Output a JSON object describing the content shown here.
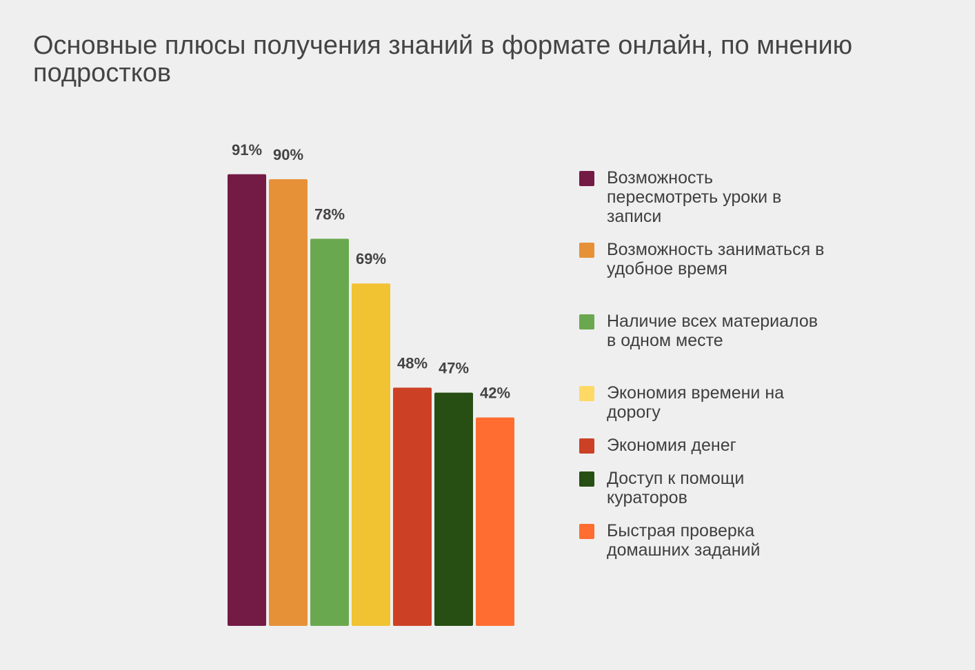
{
  "chart_data": {
    "type": "bar",
    "title": "Основные плюсы получения знаний в формате онлайн, по мнению подростков",
    "categories": [
      "Возможность пересмотреть уроки в записи",
      "Возможность заниматься в удобное время",
      "Наличие всех материалов в одном месте",
      "Экономия времени на дорогу",
      "Экономия денег",
      "Доступ к помощи кураторов",
      "Быстрая проверка домашних заданий"
    ],
    "values": [
      91,
      90,
      78,
      69,
      48,
      47,
      42
    ],
    "value_labels": [
      "91%",
      "90%",
      "78%",
      "69%",
      "48%",
      "47%",
      "42%"
    ],
    "colors": [
      "#731a45",
      "#e69138",
      "#6aa84f",
      "#f1c232",
      "#cc4125",
      "#274e13",
      "#ff6d31"
    ],
    "legend_colors": [
      "#731a45",
      "#e69138",
      "#6aa84f",
      "#ffd966",
      "#cc4125",
      "#274e13",
      "#ff6d31"
    ],
    "ylim": [
      0,
      100
    ],
    "grid": false,
    "legend_position": "right"
  }
}
